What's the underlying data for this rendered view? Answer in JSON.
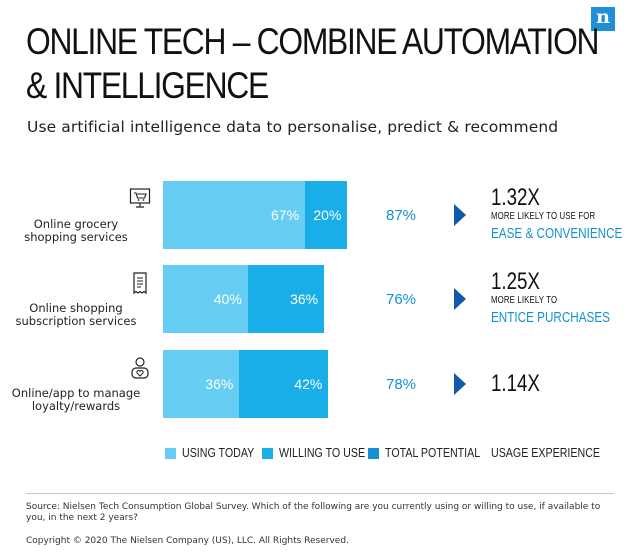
{
  "brand": {
    "logo_text": "n",
    "color": "#1f8fd6"
  },
  "title": [
    "ONLINE TECH – COMBINE AUTOMATION",
    "& INTELLIGENCE"
  ],
  "subtitle": "Use artificial intelligence data to personalise, predict & recommend",
  "chart_data": {
    "type": "bar",
    "orientation": "horizontal",
    "stacked": true,
    "categories": [
      "Online grocery shopping services",
      "Online shopping subscription services",
      "Online/app to manage loyalty/rewards"
    ],
    "category_lines": [
      [
        "Online grocery",
        "shopping services"
      ],
      [
        "Online shopping",
        "subscription services"
      ],
      [
        "Online/app to manage",
        "loyalty/rewards"
      ]
    ],
    "category_icons": [
      "shopping-cart-icon",
      "receipt-icon",
      "user-heart-icon"
    ],
    "series": [
      {
        "name": "USING TODAY",
        "values": [
          67,
          40,
          36
        ],
        "color": "#67cdf3"
      },
      {
        "name": "WILLING TO USE",
        "values": [
          20,
          36,
          42
        ],
        "color": "#1aaee9"
      }
    ],
    "value_labels": [
      [
        "67%",
        "20%"
      ],
      [
        "40%",
        "36%"
      ],
      [
        "36%",
        "42%"
      ]
    ],
    "total_potential": [
      "87%",
      "76%",
      "78%"
    ],
    "usage_experience": [
      {
        "multiplier": "1.32X",
        "note": "MORE LIKELY TO USE FOR",
        "emphasis": "EASE & CONVENIENCE"
      },
      {
        "multiplier": "1.25X",
        "note": "MORE LIKELY TO",
        "emphasis": "ENTICE PURCHASES"
      },
      {
        "multiplier": "1.14X",
        "note": "",
        "emphasis": ""
      }
    ],
    "xlim": [
      0,
      100
    ],
    "grid": false,
    "legend_position": "bottom"
  },
  "legend": [
    {
      "label": "USING TODAY",
      "color": "#67cdf3"
    },
    {
      "label": "WILLING TO USE",
      "color": "#1aaee9"
    },
    {
      "label": "TOTAL POTENTIAL",
      "color": "#1591cf"
    },
    {
      "label": "USAGE EXPERIENCE"
    }
  ],
  "colors": {
    "accent": "#1591cf",
    "arrow": "#0d5aa8"
  },
  "source": "Source: Nielsen Tech Consumption Global Survey. Which of the following are you currently using or willing to use, if available to you, in the next 2 years?",
  "copyright": "Copyright © 2020 The Nielsen Company (US), LLC. All Rights Reserved."
}
